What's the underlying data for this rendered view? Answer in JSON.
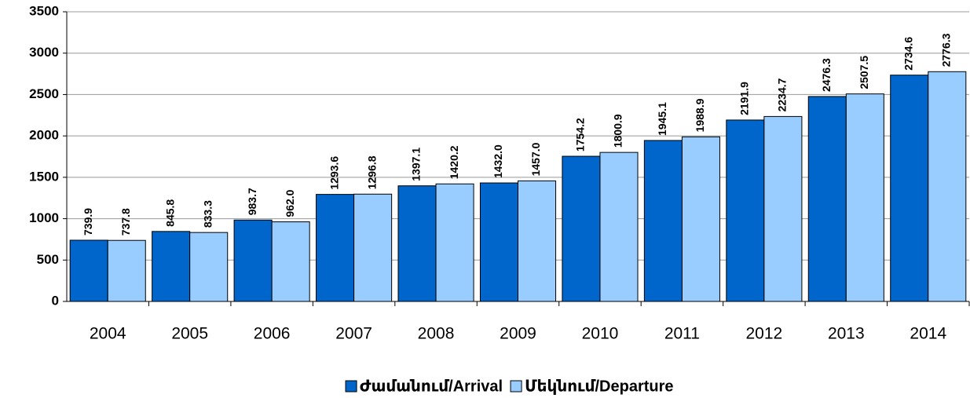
{
  "chart_data": {
    "type": "bar",
    "categories": [
      "2004",
      "2005",
      "2006",
      "2007",
      "2008",
      "2009",
      "2010",
      "2011",
      "2012",
      "2013",
      "2014"
    ],
    "series": [
      {
        "name": "Ժամանում/Arrival",
        "color": "#0066cc",
        "values": [
          739.9,
          845.8,
          983.7,
          1293.6,
          1397.1,
          1432.0,
          1754.2,
          1945.1,
          2191.9,
          2476.3,
          2734.6
        ],
        "value_labels": [
          "739.9",
          "845.8",
          "983.7",
          "1293.6",
          "1397.1",
          "1432.0",
          "1754.2",
          "1945.1",
          "2191.9",
          "2476.3",
          "2734.6"
        ]
      },
      {
        "name": "Մեկնում/Departure",
        "color": "#99ccff",
        "values": [
          737.8,
          833.3,
          962.0,
          1296.8,
          1420.2,
          1457.0,
          1800.9,
          1988.9,
          2234.7,
          2507.5,
          2776.3
        ],
        "value_labels": [
          "737.8",
          "833.3",
          "962.0",
          "1296.8",
          "1420.2",
          "1457.0",
          "1800.9",
          "1988.9",
          "2234.7",
          "2507.5",
          "2776.3"
        ]
      }
    ],
    "ylim": [
      0,
      3500
    ],
    "yticks": [
      0,
      500,
      1000,
      1500,
      2000,
      2500,
      3000,
      3500
    ],
    "grid": true,
    "legend": "bottom"
  }
}
